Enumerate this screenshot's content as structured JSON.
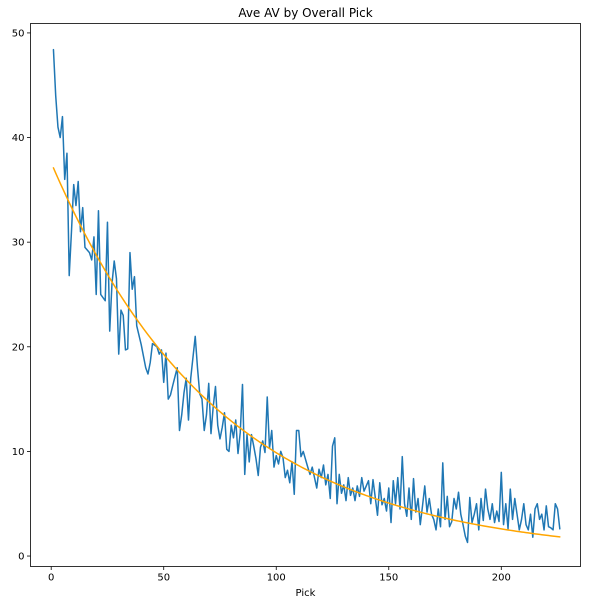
{
  "chart_data": {
    "type": "line",
    "title": "Ave AV by Overall Pick",
    "xlabel": "Pick",
    "ylabel": "",
    "xlim": [
      -9.2,
      235.2
    ],
    "ylim": [
      -1.0,
      50.9
    ],
    "xticks": [
      0,
      50,
      100,
      150,
      200
    ],
    "yticks": [
      0,
      10,
      20,
      30,
      40,
      50
    ],
    "grid": false,
    "series": [
      {
        "name": "",
        "color": "#1f77b4",
        "anchors": [
          [
            1,
            48.4
          ],
          [
            2,
            44.0
          ],
          [
            3,
            41.0
          ],
          [
            4,
            40.0
          ],
          [
            5,
            42.0
          ],
          [
            6,
            36.0
          ],
          [
            7,
            38.5
          ],
          [
            8,
            26.8
          ],
          [
            9,
            31.0
          ],
          [
            10,
            35.5
          ],
          [
            11,
            33.5
          ],
          [
            12,
            35.8
          ],
          [
            13,
            31.0
          ],
          [
            14,
            33.3
          ],
          [
            15,
            29.5
          ],
          [
            17,
            29.0
          ],
          [
            18,
            28.3
          ],
          [
            19,
            30.5
          ],
          [
            20,
            25.0
          ],
          [
            21,
            33.0
          ],
          [
            22,
            25.0
          ],
          [
            24,
            24.4
          ],
          [
            25,
            31.9
          ],
          [
            26,
            21.5
          ],
          [
            27,
            26.0
          ],
          [
            28,
            28.2
          ],
          [
            29,
            26.5
          ],
          [
            30,
            19.3
          ],
          [
            31,
            23.5
          ],
          [
            32,
            23.0
          ],
          [
            33,
            19.7
          ],
          [
            34,
            19.8
          ],
          [
            35,
            29.0
          ],
          [
            36,
            25.5
          ],
          [
            37,
            26.7
          ],
          [
            38,
            22.0
          ],
          [
            40,
            20.2
          ],
          [
            42,
            18.0
          ],
          [
            43,
            17.4
          ],
          [
            44,
            18.5
          ],
          [
            45,
            20.3
          ],
          [
            47,
            20.0
          ],
          [
            48,
            19.3
          ],
          [
            49,
            19.7
          ],
          [
            50,
            16.6
          ],
          [
            51,
            19.4
          ],
          [
            52,
            15.0
          ],
          [
            53,
            15.4
          ],
          [
            54,
            16.3
          ],
          [
            56,
            18.0
          ],
          [
            57,
            12.0
          ],
          [
            58,
            13.5
          ],
          [
            59,
            15.6
          ],
          [
            60,
            17.0
          ],
          [
            61,
            13.0
          ],
          [
            62,
            17.0
          ],
          [
            64,
            21.0
          ],
          [
            65,
            18.0
          ],
          [
            66,
            15.5
          ],
          [
            67,
            15.0
          ],
          [
            68,
            12.0
          ],
          [
            69,
            13.5
          ],
          [
            70,
            16.5
          ],
          [
            71,
            11.7
          ],
          [
            72,
            14.3
          ],
          [
            73,
            16.2
          ],
          [
            74,
            12.5
          ],
          [
            75,
            11.2
          ],
          [
            76,
            12.3
          ],
          [
            77,
            13.7
          ],
          [
            78,
            10.2
          ],
          [
            79,
            10.0
          ],
          [
            80,
            12.5
          ],
          [
            81,
            11.3
          ],
          [
            82,
            13.0
          ],
          [
            83,
            9.8
          ],
          [
            84,
            11.8
          ],
          [
            85,
            16.4
          ],
          [
            86,
            7.8
          ],
          [
            87,
            11.6
          ],
          [
            88,
            9.0
          ],
          [
            89,
            11.6
          ],
          [
            90,
            10.5
          ],
          [
            91,
            9.3
          ],
          [
            92,
            7.7
          ],
          [
            93,
            10.4
          ],
          [
            94,
            11.0
          ],
          [
            95,
            9.9
          ],
          [
            96,
            15.2
          ],
          [
            97,
            10.3
          ],
          [
            98,
            12.0
          ],
          [
            99,
            8.5
          ],
          [
            100,
            9.6
          ],
          [
            101,
            8.8
          ],
          [
            102,
            10.0
          ],
          [
            103,
            9.4
          ],
          [
            104,
            7.5
          ],
          [
            105,
            8.2
          ],
          [
            106,
            7.0
          ],
          [
            107,
            9.0
          ],
          [
            108,
            5.9
          ],
          [
            109,
            12.0
          ],
          [
            110,
            12.0
          ],
          [
            111,
            9.5
          ],
          [
            112,
            10.0
          ],
          [
            114,
            8.5
          ],
          [
            115,
            7.8
          ],
          [
            116,
            8.5
          ],
          [
            118,
            6.5
          ],
          [
            119,
            8.3
          ],
          [
            120,
            7.5
          ],
          [
            121,
            8.7
          ],
          [
            122,
            6.8
          ],
          [
            123,
            7.8
          ],
          [
            124,
            5.5
          ],
          [
            125,
            10.5
          ],
          [
            126,
            11.3
          ],
          [
            127,
            5.0
          ],
          [
            128,
            7.8
          ],
          [
            129,
            6.0
          ],
          [
            130,
            6.8
          ],
          [
            131,
            5.3
          ],
          [
            132,
            7.5
          ],
          [
            133,
            5.8
          ],
          [
            134,
            6.5
          ],
          [
            135,
            5.3
          ],
          [
            136,
            6.7
          ],
          [
            137,
            5.7
          ],
          [
            138,
            7.5
          ],
          [
            139,
            6.2
          ],
          [
            141,
            7.2
          ],
          [
            142,
            5.0
          ],
          [
            143,
            7.3
          ],
          [
            145,
            3.9
          ],
          [
            146,
            7.0
          ],
          [
            147,
            4.9
          ],
          [
            148,
            5.5
          ],
          [
            149,
            4.3
          ],
          [
            150,
            6.5
          ],
          [
            151,
            3.2
          ],
          [
            152,
            7.2
          ],
          [
            153,
            5.0
          ],
          [
            154,
            7.5
          ],
          [
            155,
            4.5
          ],
          [
            156,
            9.5
          ],
          [
            157,
            5.0
          ],
          [
            158,
            3.8
          ],
          [
            159,
            6.5
          ],
          [
            160,
            3.5
          ],
          [
            161,
            7.4
          ],
          [
            162,
            4.2
          ],
          [
            163,
            5.5
          ],
          [
            164,
            3.0
          ],
          [
            165,
            4.8
          ],
          [
            166,
            6.7
          ],
          [
            167,
            4.2
          ],
          [
            168,
            5.5
          ],
          [
            169,
            4.0
          ],
          [
            170,
            3.5
          ],
          [
            171,
            2.5
          ],
          [
            172,
            4.5
          ],
          [
            173,
            2.8
          ],
          [
            174,
            8.9
          ],
          [
            175,
            3.5
          ],
          [
            176,
            5.7
          ],
          [
            177,
            2.8
          ],
          [
            178,
            3.3
          ],
          [
            179,
            5.5
          ],
          [
            180,
            4.5
          ],
          [
            181,
            6.1
          ],
          [
            182,
            4.0
          ],
          [
            183,
            3.0
          ],
          [
            184,
            1.9
          ],
          [
            185,
            1.3
          ],
          [
            186,
            5.6
          ],
          [
            187,
            3.2
          ],
          [
            188,
            4.0
          ],
          [
            189,
            5.0
          ],
          [
            190,
            2.5
          ],
          [
            191,
            5.5
          ],
          [
            192,
            3.4
          ],
          [
            193,
            6.4
          ],
          [
            194,
            4.5
          ],
          [
            195,
            3.5
          ],
          [
            196,
            5.0
          ],
          [
            197,
            3.2
          ],
          [
            198,
            4.3
          ],
          [
            199,
            3.3
          ],
          [
            200,
            8.0
          ],
          [
            201,
            3.0
          ],
          [
            202,
            5.0
          ],
          [
            203,
            2.6
          ],
          [
            204,
            6.4
          ],
          [
            205,
            3.5
          ],
          [
            206,
            5.5
          ],
          [
            207,
            4.0
          ],
          [
            208,
            2.5
          ],
          [
            209,
            3.5
          ],
          [
            210,
            5.0
          ],
          [
            211,
            3.0
          ],
          [
            212,
            2.5
          ],
          [
            213,
            4.0
          ],
          [
            214,
            1.8
          ],
          [
            215,
            4.5
          ],
          [
            216,
            5.0
          ],
          [
            217,
            3.5
          ],
          [
            218,
            4.0
          ],
          [
            219,
            2.5
          ],
          [
            220,
            4.8
          ],
          [
            221,
            2.8
          ],
          [
            222,
            2.7
          ],
          [
            223,
            2.5
          ],
          [
            224,
            5.0
          ],
          [
            225,
            4.5
          ],
          [
            226,
            2.6
          ]
        ]
      },
      {
        "name": "",
        "color": "#ffa500",
        "type": "exponential-fit",
        "a": 37.6,
        "b": 0.01337,
        "x_range": [
          1,
          226
        ]
      }
    ]
  }
}
